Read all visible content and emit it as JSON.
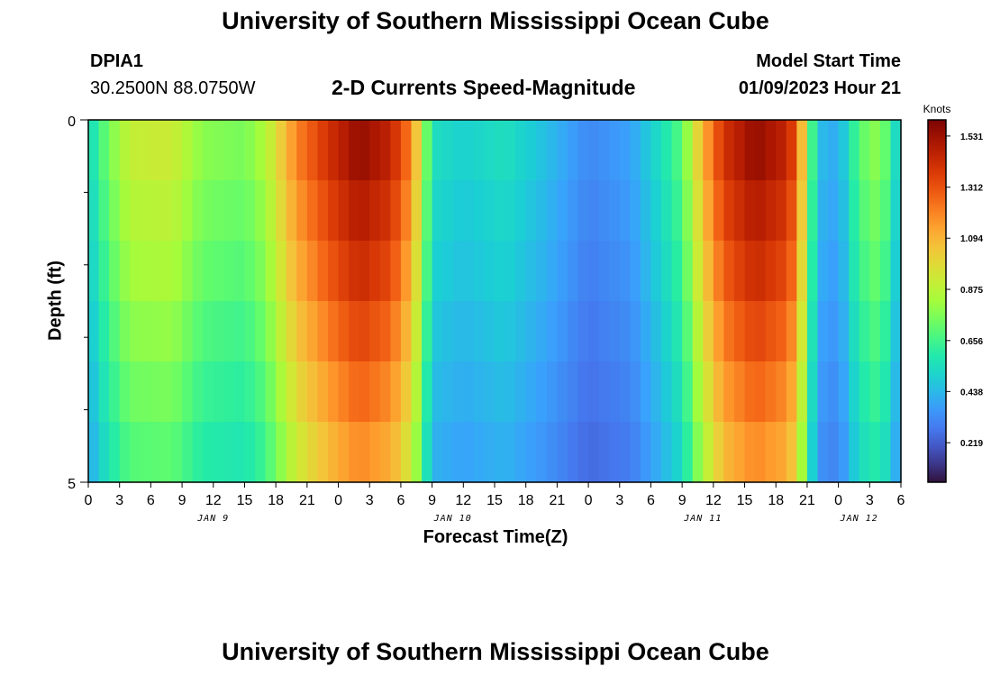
{
  "header": {
    "title": "University of Southern Mississippi Ocean Cube",
    "footer_title": "University of Southern Mississippi Ocean Cube",
    "station_id": "DPIA1",
    "station_coords": "30.2500N  88.0750W",
    "model_start_label": "Model Start Time",
    "model_start_value": "01/09/2023 Hour 21"
  },
  "chart_data": {
    "type": "heatmap",
    "title": "2-D Currents Speed-Magnitude",
    "xlabel": "Forecast Time(Z)",
    "ylabel": "Depth (ft)",
    "ylim": [
      0,
      5
    ],
    "y_tick_labels": [
      "0",
      "5"
    ],
    "x_tick_labels": [
      "0",
      "3",
      "6",
      "9",
      "12",
      "15",
      "18",
      "21",
      "0",
      "3",
      "6",
      "9",
      "12",
      "15",
      "18",
      "21",
      "0",
      "3",
      "6",
      "9",
      "12",
      "15",
      "18",
      "21",
      "0",
      "3",
      "6"
    ],
    "date_labels": [
      {
        "label": "JAN 9",
        "hour_offset": 12
      },
      {
        "label": "JAN 10",
        "hour_offset": 35
      },
      {
        "label": "JAN 11",
        "hour_offset": 59
      },
      {
        "label": "JAN 12",
        "hour_offset": 74
      }
    ],
    "hours": 78,
    "depth_levels": 6,
    "row_factors": [
      1.0,
      0.96,
      0.92,
      0.87,
      0.82,
      0.77
    ],
    "surface_speed_keyframes": [
      {
        "hour": 0,
        "speed": 0.52
      },
      {
        "hour": 2,
        "speed": 0.75
      },
      {
        "hour": 4,
        "speed": 0.9
      },
      {
        "hour": 8,
        "speed": 0.92
      },
      {
        "hour": 11,
        "speed": 0.78
      },
      {
        "hour": 15,
        "speed": 0.75
      },
      {
        "hour": 17,
        "speed": 0.85
      },
      {
        "hour": 20,
        "speed": 1.2
      },
      {
        "hour": 23,
        "speed": 1.4
      },
      {
        "hour": 26,
        "speed": 1.55
      },
      {
        "hour": 29,
        "speed": 1.45
      },
      {
        "hour": 31,
        "speed": 1.2
      },
      {
        "hour": 32,
        "speed": 0.9
      },
      {
        "hour": 33,
        "speed": 0.55
      },
      {
        "hour": 36,
        "speed": 0.5
      },
      {
        "hour": 40,
        "speed": 0.55
      },
      {
        "hour": 44,
        "speed": 0.45
      },
      {
        "hour": 48,
        "speed": 0.32
      },
      {
        "hour": 52,
        "speed": 0.38
      },
      {
        "hour": 55,
        "speed": 0.55
      },
      {
        "hour": 57,
        "speed": 0.7
      },
      {
        "hour": 59,
        "speed": 1.1
      },
      {
        "hour": 61,
        "speed": 1.4
      },
      {
        "hour": 64,
        "speed": 1.55
      },
      {
        "hour": 67,
        "speed": 1.45
      },
      {
        "hour": 68,
        "speed": 1.3
      },
      {
        "hour": 69,
        "speed": 0.85
      },
      {
        "hour": 70,
        "speed": 0.45
      },
      {
        "hour": 72,
        "speed": 0.4
      },
      {
        "hour": 74,
        "speed": 0.7
      },
      {
        "hour": 76,
        "speed": 0.8
      },
      {
        "hour": 78,
        "speed": 0.45
      }
    ],
    "colorbar": {
      "unit_label": "Knots",
      "min": 0.05,
      "max": 1.6,
      "tick_values": [
        1.531,
        1.312,
        1.094,
        0.875,
        0.656,
        0.438,
        0.219
      ],
      "tick_labels": [
        "1.531",
        "1.312",
        "1.094",
        "0.875",
        "0.656",
        "0.438",
        "0.219"
      ]
    },
    "colormap_stops": [
      "#30123b",
      "#4145ab",
      "#4675ed",
      "#39a2fc",
      "#1bcfd4",
      "#24eca6",
      "#61fc6c",
      "#a4fc3b",
      "#d1e834",
      "#f3c63a",
      "#fe9b2d",
      "#f36315",
      "#d93806",
      "#b11901",
      "#7a0402"
    ]
  }
}
